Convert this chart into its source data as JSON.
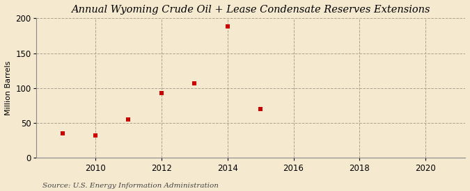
{
  "title": "Annual Wyoming Crude Oil + Lease Condensate Reserves Extensions",
  "ylabel": "Million Barrels",
  "source_text": "Source: U.S. Energy Information Administration",
  "years": [
    2009,
    2010,
    2011,
    2012,
    2013,
    2014,
    2015
  ],
  "values": [
    35,
    32,
    55,
    93,
    107,
    188,
    70
  ],
  "marker_color": "#cc0000",
  "marker_size": 4,
  "xlim": [
    2008.2,
    2021.2
  ],
  "ylim": [
    0,
    200
  ],
  "xticks": [
    2010,
    2012,
    2014,
    2016,
    2018,
    2020
  ],
  "yticks": [
    0,
    50,
    100,
    150,
    200
  ],
  "background_color": "#f5e9d0",
  "plot_background_color": "#f5e9d0",
  "grid_color": "#b0a090",
  "title_fontsize": 10.5,
  "label_fontsize": 8,
  "tick_fontsize": 8.5,
  "source_fontsize": 7.5
}
